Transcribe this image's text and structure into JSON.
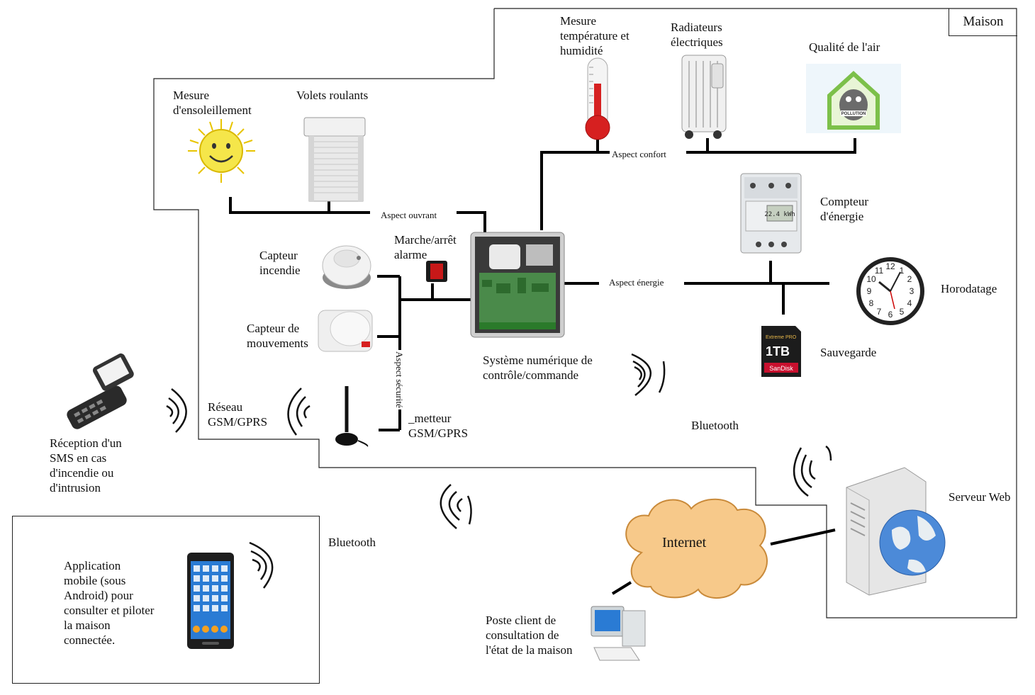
{
  "house": {
    "title": "Maison"
  },
  "aspects": {
    "confort": "Aspect confort",
    "ouvrant": "Aspect ouvrant",
    "energie": "Aspect énergie",
    "securite": "Aspect sécurité"
  },
  "devices": {
    "temperature": "Mesure\ntempérature et\nhumidité",
    "radiators": "Radiateurs\nélectriques",
    "air_quality": "Qualité de l'air",
    "sunlight": "Mesure\nd'ensoleillement",
    "shutters": "Volets roulants",
    "alarm_switch": "Marche/arrêt\nalarme",
    "fire_sensor": "Capteur\nincendie",
    "motion_sensor": "Capteur de\nmouvements",
    "controller": "Système numérique de\ncontrôle/commande",
    "energy_meter": "Compteur\nd'énergie",
    "timestamp": "Horodatage",
    "backup": "Sauvegarde",
    "gsm_emitter": "_metteur\nGSM/GPRS",
    "gsm_network": "Réseau\nGSM/GPRS",
    "sms_reception": "Réception d'un\nSMS en cas\nd'incendie ou\nd'intrusion",
    "mobile_app": "Application\nmobile (sous\nAndroid) pour\nconsulter et piloter\nla maison\nconnectée.",
    "bluetooth_house": "Bluetooth",
    "bluetooth_app": "Bluetooth",
    "internet": "Internet",
    "web_server": "Serveur Web",
    "client_station": "Poste client de\nconsultation de\nl'état de la maison"
  },
  "icon_labels": {
    "pollution": "POLLUTION",
    "meter_display": "22.4 kWh",
    "sd_card_brand": "Extreme PRO",
    "sd_card_size": "1TB",
    "sd_card_maker": "SanDisk"
  },
  "colors": {
    "line": "#000000",
    "cloud": "#f7c98a",
    "thermo_red": "#d62020",
    "sun": "#f5e64a",
    "screen": "#2a7bd4"
  }
}
